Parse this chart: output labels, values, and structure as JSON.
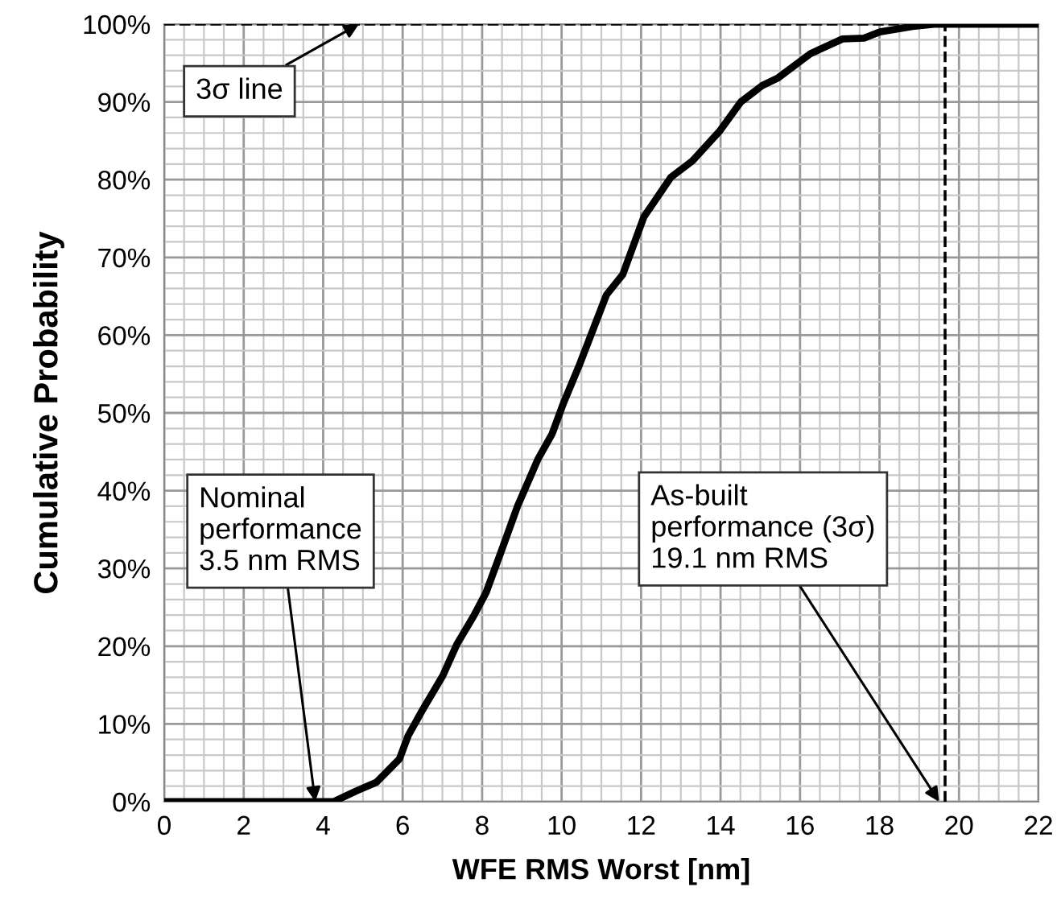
{
  "chart_data": {
    "type": "line",
    "xlabel": "WFE RMS Worst [nm]",
    "ylabel": "Cumulative Probability",
    "xlim": [
      0,
      22
    ],
    "xticks": [
      0,
      2,
      4,
      6,
      8,
      10,
      12,
      14,
      16,
      18,
      20,
      22
    ],
    "ylim": [
      0,
      100
    ],
    "yticks": [
      {
        "value": 0,
        "label": "0%"
      },
      {
        "value": 10,
        "label": "10%"
      },
      {
        "value": 20,
        "label": "20%"
      },
      {
        "value": 30,
        "label": "30%"
      },
      {
        "value": 40,
        "label": "40%"
      },
      {
        "value": 50,
        "label": "50%"
      },
      {
        "value": 60,
        "label": "60%"
      },
      {
        "value": 70,
        "label": "70%"
      },
      {
        "value": 80,
        "label": "80%"
      },
      {
        "value": 90,
        "label": "90%"
      },
      {
        "value": 100,
        "label": "100%"
      }
    ],
    "grid": true,
    "marker": "none",
    "line_style": "solid",
    "series": [
      {
        "color": "#000000",
        "x": [
          0,
          4.26,
          4.84,
          5.34,
          5.92,
          6.14,
          6.5,
          7.01,
          7.37,
          7.8,
          8.1,
          8.53,
          8.89,
          9.4,
          9.76,
          10.05,
          10.45,
          11.13,
          11.54,
          12.07,
          12.75,
          13.29,
          13.97,
          14.51,
          15.05,
          15.45,
          16.26,
          17.07,
          17.61,
          18.01,
          18.83,
          19.37,
          22
        ],
        "values": [
          0,
          0,
          1.4,
          2.5,
          5.5,
          8.5,
          11.8,
          16.2,
          20.3,
          24.0,
          26.9,
          32.9,
          38.0,
          44.0,
          47.3,
          51.3,
          56.2,
          65.2,
          67.8,
          75.2,
          80.3,
          82.4,
          86.2,
          90.0,
          92.1,
          93.1,
          96.2,
          98.1,
          98.2,
          99.0,
          99.7,
          100,
          100
        ]
      }
    ],
    "ref_lines": [
      {
        "axis": "x",
        "value": 19.65,
        "line_style": "dashed",
        "color": "#000000"
      },
      {
        "axis": "y",
        "value": 100,
        "line_style": "dashed",
        "color": "#000000"
      }
    ],
    "annotations": [
      {
        "text": "3σ line",
        "x": 4.9,
        "y": 100
      },
      {
        "text": "Nominal\nperformance\n3.5 nm RMS",
        "x": 3.8,
        "y": 0
      },
      {
        "text": "As-built\nperformance (3σ)\n19.1 nm RMS",
        "x": 19.5,
        "y": 0
      }
    ]
  }
}
